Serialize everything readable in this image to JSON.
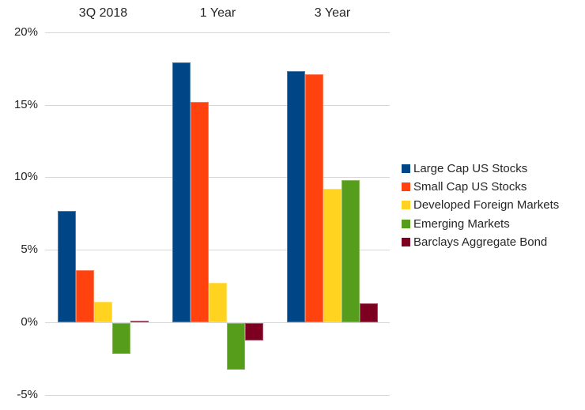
{
  "chart_data": {
    "type": "bar",
    "categories": [
      "3Q 2018",
      "1 Year",
      "3 Year"
    ],
    "series": [
      {
        "name": "Large Cap US Stocks",
        "color": "#004586",
        "values": [
          7.7,
          17.9,
          17.3
        ]
      },
      {
        "name": "Small Cap US Stocks",
        "color": "#FF420E",
        "values": [
          3.6,
          15.2,
          17.1
        ]
      },
      {
        "name": "Developed Foreign Markets",
        "color": "#FFD320",
        "values": [
          1.4,
          2.7,
          9.2
        ]
      },
      {
        "name": "Emerging Markets",
        "color": "#579D1C",
        "values": [
          -2.1,
          -3.2,
          9.8
        ]
      },
      {
        "name": "Barclays Aggregate Bond",
        "color": "#7E0021",
        "values": [
          0.1,
          -1.2,
          1.3
        ]
      }
    ],
    "y_axis": {
      "unit": "%",
      "ticks": [
        20,
        15,
        10,
        5,
        0,
        -5
      ],
      "tick_labels": [
        "20%",
        "15%",
        "10%",
        "5%",
        "0%",
        "-5%"
      ],
      "ylim": [
        -5,
        20
      ],
      "grid": true
    },
    "category_labels_position": "top",
    "legend_position": "right",
    "colors": {
      "gridline": "#d6d6d6",
      "text": "#262626",
      "background": "#ffffff"
    }
  }
}
